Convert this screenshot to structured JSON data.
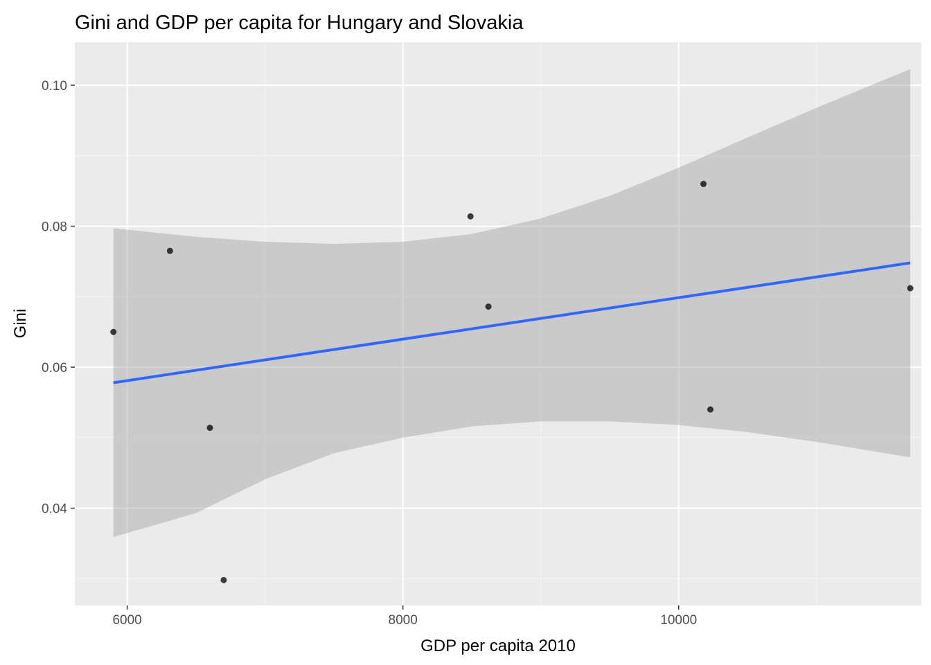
{
  "chart_data": {
    "type": "scatter",
    "title": "Gini and GDP per capita for Hungary and Slovakia",
    "xlabel": "GDP per capita 2010",
    "ylabel": "Gini",
    "xlim": [
      5620,
      11760
    ],
    "ylim": [
      0.0262,
      0.1061
    ],
    "x_ticks": [
      6000,
      8000,
      10000
    ],
    "x_tick_labels": [
      "6000",
      "8000",
      "10000"
    ],
    "x_minor_ticks": [
      7000,
      9000,
      11000
    ],
    "y_ticks": [
      0.04,
      0.06,
      0.08,
      0.1
    ],
    "y_tick_labels": [
      "0.04",
      "0.06",
      "0.08",
      "0.10"
    ],
    "y_minor_ticks": [
      0.03,
      0.05,
      0.07,
      0.09
    ],
    "grid": true,
    "points": [
      {
        "x": 5900,
        "y": 0.065
      },
      {
        "x": 6310,
        "y": 0.0765
      },
      {
        "x": 6600,
        "y": 0.0514
      },
      {
        "x": 6700,
        "y": 0.0298
      },
      {
        "x": 8490,
        "y": 0.0814
      },
      {
        "x": 8620,
        "y": 0.0686
      },
      {
        "x": 10180,
        "y": 0.086
      },
      {
        "x": 10230,
        "y": 0.054
      },
      {
        "x": 11680,
        "y": 0.0712
      }
    ],
    "smooth": {
      "method": "linear",
      "x": [
        5900,
        11680
      ],
      "y": [
        0.0578,
        0.0748
      ]
    },
    "confidence_band": {
      "x": [
        5900,
        6500,
        7000,
        7500,
        8000,
        8500,
        9000,
        9500,
        10000,
        10500,
        11000,
        11680
      ],
      "upper": [
        0.0797,
        0.0785,
        0.0778,
        0.0775,
        0.0778,
        0.0789,
        0.0811,
        0.0843,
        0.0883,
        0.0926,
        0.0968,
        0.1023
      ],
      "lower": [
        0.0359,
        0.0393,
        0.0441,
        0.0478,
        0.05,
        0.0516,
        0.0523,
        0.0523,
        0.0518,
        0.0508,
        0.0494,
        0.0472
      ]
    },
    "colors": {
      "panel": "#ebebeb",
      "grid_major": "#ffffff",
      "grid_minor": "#f5f5f5",
      "line": "#3366ff",
      "band": "#999999",
      "point": "#000000",
      "tick_text": "#4d4d4d",
      "tick_mark": "#333333"
    }
  }
}
